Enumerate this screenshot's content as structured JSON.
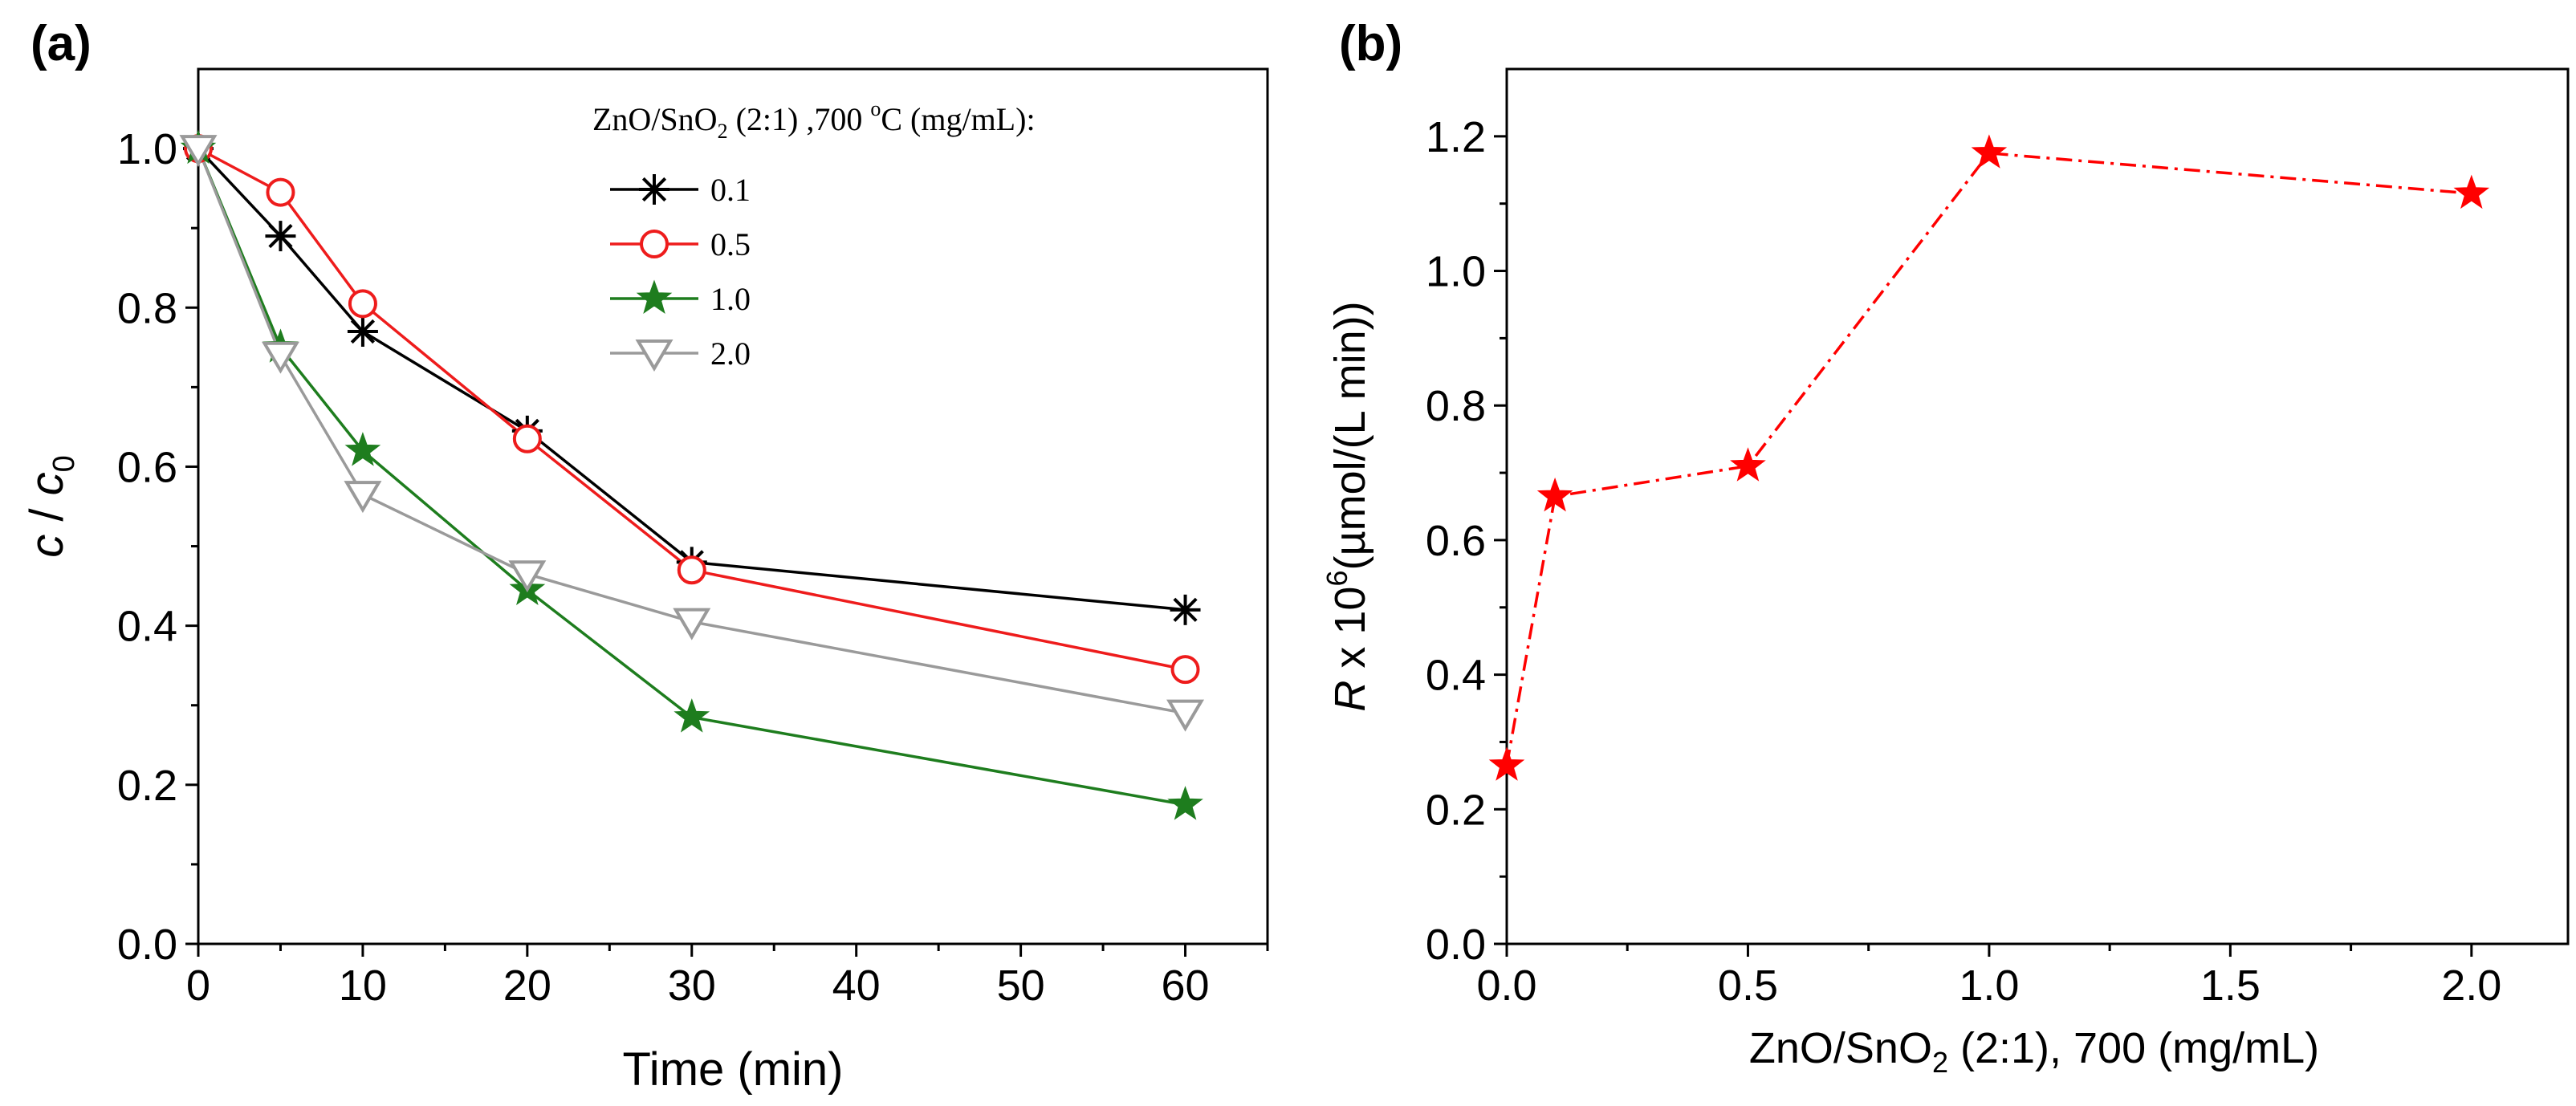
{
  "chart_data": [
    {
      "type": "line",
      "panel_label": "(a)",
      "xlabel": "Time (min)",
      "ylabel": {
        "c": "c",
        "slash": " / ",
        "c0": "c",
        "sub": "0"
      },
      "xlim": [
        0,
        65
      ],
      "ylim": [
        0,
        1.1
      ],
      "x_ticks": [
        0,
        10,
        20,
        30,
        40,
        50,
        60
      ],
      "x_tick_labels": [
        "0",
        "10",
        "20",
        "30",
        "40",
        "50",
        "60"
      ],
      "y_ticks": [
        0.0,
        0.2,
        0.4,
        0.6,
        0.8,
        1.0
      ],
      "y_tick_labels": [
        "0.0",
        "0.2",
        "0.4",
        "0.6",
        "0.8",
        "1.0"
      ],
      "legend": {
        "title_main": "ZnO/SnO",
        "title_sub": "2",
        "title_rest": " (2:1) ,700 ",
        "title_sup": "o",
        "title_end": "C (mg/mL):",
        "position": "top-right"
      },
      "x": [
        0,
        5,
        10,
        20,
        30,
        60
      ],
      "series": [
        {
          "name": "0.1",
          "color": "#000000",
          "marker": "asterisk",
          "values": [
            1.0,
            0.89,
            0.77,
            0.645,
            0.48,
            0.42
          ]
        },
        {
          "name": "0.5",
          "color": "#ee1c1c",
          "marker": "circle",
          "values": [
            1.0,
            0.945,
            0.805,
            0.635,
            0.47,
            0.345
          ]
        },
        {
          "name": "1.0",
          "color": "#1e7d1e",
          "marker": "star",
          "values": [
            1.0,
            0.75,
            0.62,
            0.445,
            0.285,
            0.175
          ]
        },
        {
          "name": "2.0",
          "color": "#9a9a9a",
          "marker": "triangle-down",
          "values": [
            1.0,
            0.74,
            0.565,
            0.465,
            0.405,
            0.29
          ]
        }
      ]
    },
    {
      "type": "line",
      "panel_label": "(b)",
      "xlabel": {
        "main": "ZnO/SnO",
        "sub": "2",
        "rest": " (2:1), 700 (mg/mL)"
      },
      "ylabel": {
        "italic": "R",
        "main": " x 10",
        "sup": "6",
        "rest": "(µmol/(L min))"
      },
      "xlim": [
        0,
        2.2
      ],
      "ylim": [
        0,
        1.3
      ],
      "x_ticks": [
        0.0,
        0.5,
        1.0,
        1.5,
        2.0
      ],
      "x_tick_labels": [
        "0.0",
        "0.5",
        "1.0",
        "1.5",
        "2.0"
      ],
      "y_ticks": [
        0.0,
        0.2,
        0.4,
        0.6,
        0.8,
        1.0,
        1.2
      ],
      "y_tick_labels": [
        "0.0",
        "0.2",
        "0.4",
        "0.6",
        "0.8",
        "1.0",
        "1.2"
      ],
      "line_style": "dash-dot",
      "series": [
        {
          "name": "R",
          "color": "#ff0000",
          "marker": "star",
          "x": [
            0.0,
            0.1,
            0.5,
            1.0,
            2.0
          ],
          "values": [
            0.265,
            0.665,
            0.71,
            1.175,
            1.115
          ]
        }
      ]
    }
  ]
}
